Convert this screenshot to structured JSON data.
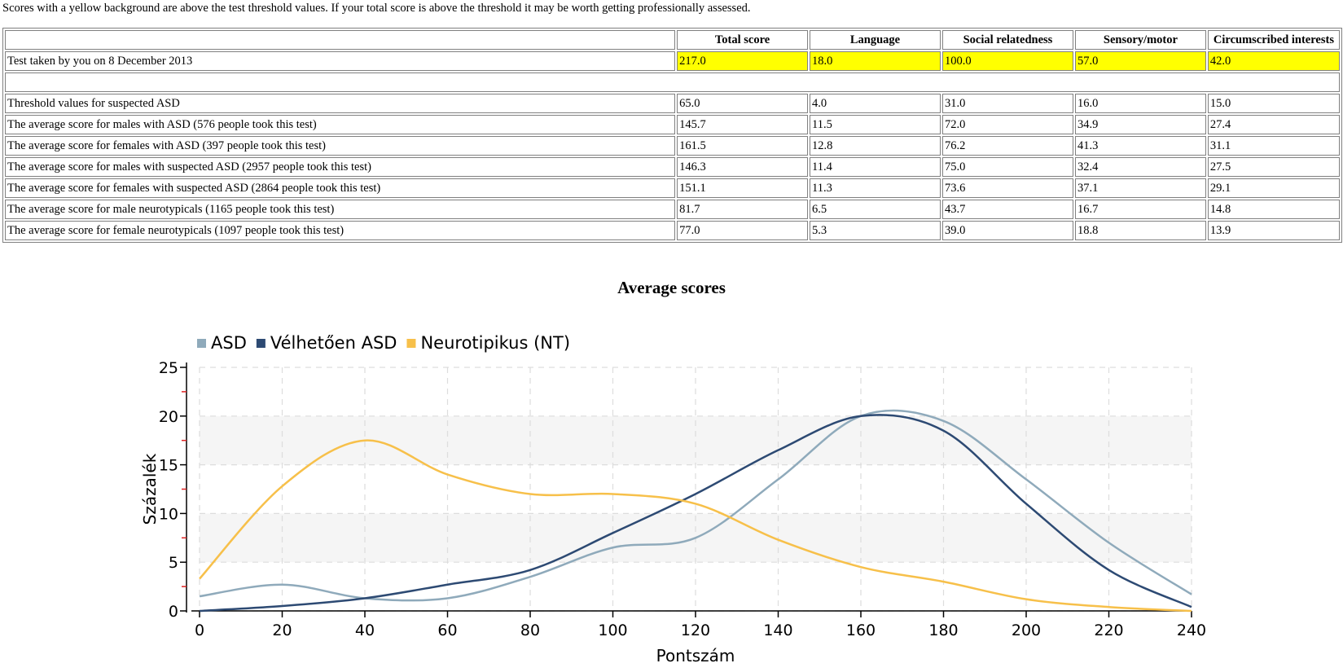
{
  "notice": "Scores with a yellow background are above the test threshold values. If your total score is above the threshold it may be worth getting professionally assessed.",
  "table": {
    "headers": [
      "",
      "Total score",
      "Language",
      "Social relatedness",
      "Sensory/motor",
      "Circumscribed interests"
    ],
    "your_row": {
      "label": "Test taken by you on 8 December 2013",
      "values": [
        "217.0",
        "18.0",
        "100.0",
        "57.0",
        "42.0"
      ],
      "highlight_color": "#ffff00"
    },
    "rows": [
      {
        "label": "Threshold values for suspected ASD",
        "values": [
          "65.0",
          "4.0",
          "31.0",
          "16.0",
          "15.0"
        ]
      },
      {
        "label": "The average score for males with ASD (576 people took this test)",
        "values": [
          "145.7",
          "11.5",
          "72.0",
          "34.9",
          "27.4"
        ]
      },
      {
        "label": "The average score for females with ASD (397 people took this test)",
        "values": [
          "161.5",
          "12.8",
          "76.2",
          "41.3",
          "31.1"
        ]
      },
      {
        "label": "The average score for males with suspected ASD (2957 people took this test)",
        "values": [
          "146.3",
          "11.4",
          "75.0",
          "32.4",
          "27.5"
        ]
      },
      {
        "label": "The average score for females with suspected ASD (2864 people took this test)",
        "values": [
          "151.1",
          "11.3",
          "73.6",
          "37.1",
          "29.1"
        ]
      },
      {
        "label": "The average score for male neurotypicals (1165 people took this test)",
        "values": [
          "81.7",
          "6.5",
          "43.7",
          "16.7",
          "14.8"
        ]
      },
      {
        "label": "The average score for female neurotypicals (1097 people took this test)",
        "values": [
          "77.0",
          "5.3",
          "39.0",
          "18.8",
          "13.9"
        ]
      }
    ]
  },
  "chart_data": {
    "type": "line",
    "title": "Average scores",
    "xlabel": "Pontszám",
    "ylabel": "Százalék",
    "xlim": [
      0,
      240
    ],
    "ylim": [
      0,
      25
    ],
    "x_ticks": [
      "0",
      "20",
      "40",
      "60",
      "80",
      "100",
      "120",
      "140",
      "160",
      "180",
      "200",
      "220",
      "240"
    ],
    "y_ticks": [
      "0",
      "5",
      "10",
      "15",
      "20",
      "25"
    ],
    "grid": true,
    "legend_position": "top-left",
    "x": [
      0,
      20,
      40,
      60,
      80,
      100,
      120,
      140,
      160,
      180,
      200,
      220,
      240
    ],
    "series": [
      {
        "name": "ASD",
        "color": "#8faabb",
        "values": [
          1.5,
          2.7,
          1.3,
          1.3,
          3.5,
          6.5,
          7.5,
          13.5,
          20.0,
          19.5,
          13.5,
          7.0,
          1.7
        ]
      },
      {
        "name": "Vélhetően ASD",
        "color": "#2d4a73",
        "values": [
          0.0,
          0.5,
          1.3,
          2.7,
          4.2,
          8.0,
          12.0,
          16.5,
          20.0,
          18.5,
          11.0,
          4.2,
          0.4
        ]
      },
      {
        "name": "Neurotipikus (NT)",
        "color": "#f7c04a",
        "values": [
          3.3,
          12.8,
          17.5,
          14.0,
          12.0,
          12.0,
          11.0,
          7.3,
          4.5,
          3.0,
          1.2,
          0.4,
          0.0
        ]
      }
    ]
  }
}
